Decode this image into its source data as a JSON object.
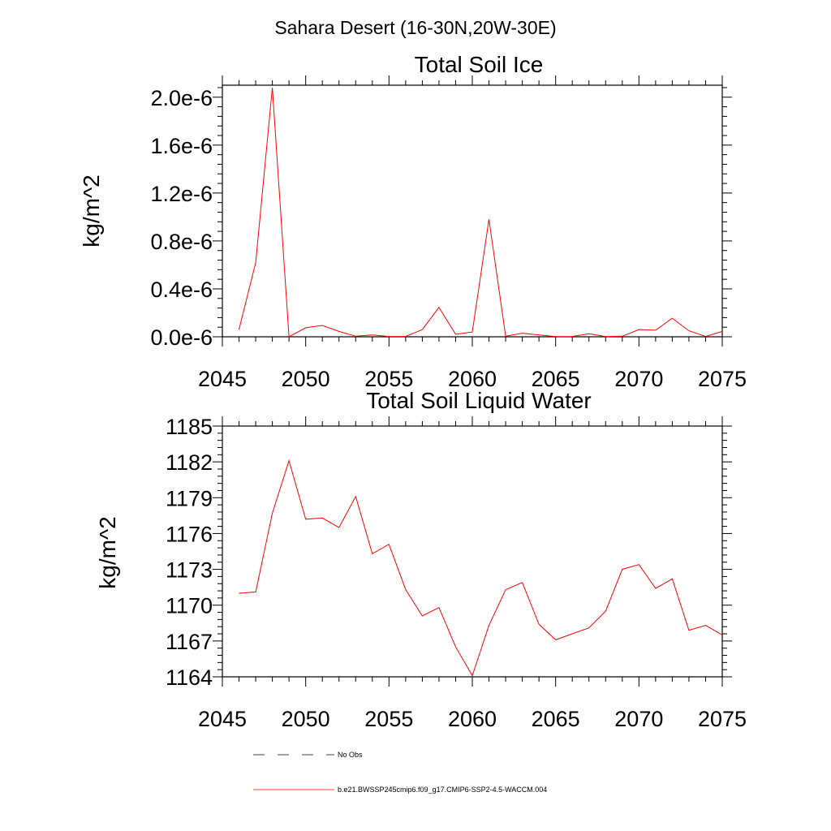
{
  "figure_title": "Sahara Desert (16-30N,20W-30E)",
  "legend": {
    "entries": [
      {
        "label": "No Obs",
        "color": "#00004a",
        "style": "dashed"
      },
      {
        "label": "b.e21.BWSSP245cmip6.f09_g17.CMIP6-SSP2-4.5-WACCM.004",
        "color": "#ff0000",
        "style": "solid"
      }
    ]
  },
  "chart_data": [
    {
      "type": "line",
      "title": "Total Soil Ice",
      "xlabel": "",
      "ylabel": "kg/m^2",
      "xlim": [
        2045,
        2075
      ],
      "ylim": [
        0.0,
        2.1e-06
      ],
      "grid": false,
      "x_ticks": [
        2045,
        2050,
        2055,
        2060,
        2065,
        2070,
        2075
      ],
      "x_tick_labels": [
        "2045",
        "2050",
        "2055",
        "2060",
        "2065",
        "2070",
        "2075"
      ],
      "y_ticks": [
        0.0,
        4e-07,
        8e-07,
        1.2e-06,
        1.6e-06,
        2e-06
      ],
      "y_tick_labels": [
        "0.0e-6",
        "0.4e-6",
        "0.8e-6",
        "1.2e-6",
        "1.6e-6",
        "2.0e-6"
      ],
      "series": [
        {
          "name": "b.e21.BWSSP245cmip6.f09_g17.CMIP6-SSP2-4.5-WACCM.004",
          "color": "#ff0000",
          "x": [
            2046,
            2047,
            2048,
            2049,
            2050,
            2051,
            2052,
            2053,
            2054,
            2055,
            2056,
            2057,
            2058,
            2059,
            2060,
            2061,
            2062,
            2063,
            2064,
            2065,
            2066,
            2067,
            2068,
            2069,
            2070,
            2071,
            2072,
            2073,
            2074,
            2075
          ],
          "values": [
            6e-08,
            6.2e-07,
            2.08e-06,
            0.0,
            7.5e-08,
            9.5e-08,
            4.5e-08,
            5e-09,
            1.5e-08,
            3e-09,
            3e-09,
            6e-08,
            2.45e-07,
            2e-08,
            4e-08,
            9.8e-07,
            5e-09,
            3e-08,
            1.5e-08,
            2e-09,
            3e-09,
            2.5e-08,
            2e-09,
            5e-09,
            6e-08,
            5.5e-08,
            1.55e-07,
            5e-08,
            3e-09,
            4.5e-08
          ]
        }
      ]
    },
    {
      "type": "line",
      "title": "Total Soil Liquid Water",
      "xlabel": "",
      "ylabel": "kg/m^2",
      "xlim": [
        2045,
        2075
      ],
      "ylim": [
        1164,
        1185
      ],
      "grid": false,
      "x_ticks": [
        2045,
        2050,
        2055,
        2060,
        2065,
        2070,
        2075
      ],
      "x_tick_labels": [
        "2045",
        "2050",
        "2055",
        "2060",
        "2065",
        "2070",
        "2075"
      ],
      "y_ticks": [
        1164,
        1167,
        1170,
        1173,
        1176,
        1179,
        1182,
        1185
      ],
      "y_tick_labels": [
        "1164",
        "1167",
        "1170",
        "1173",
        "1176",
        "1179",
        "1182",
        "1185"
      ],
      "series": [
        {
          "name": "b.e21.BWSSP245cmip6.f09_g17.CMIP6-SSP2-4.5-WACCM.004",
          "color": "#ff0000",
          "x": [
            2046,
            2047,
            2048,
            2049,
            2050,
            2051,
            2052,
            2053,
            2054,
            2055,
            2056,
            2057,
            2058,
            2059,
            2060,
            2061,
            2062,
            2063,
            2064,
            2065,
            2066,
            2067,
            2068,
            2069,
            2070,
            2071,
            2072,
            2073,
            2074,
            2075
          ],
          "values": [
            1171.0,
            1171.1,
            1177.7,
            1182.1,
            1177.2,
            1177.3,
            1176.5,
            1179.1,
            1174.3,
            1175.1,
            1171.3,
            1169.1,
            1169.8,
            1166.5,
            1164.1,
            1168.3,
            1171.3,
            1171.9,
            1168.4,
            1167.1,
            1167.6,
            1168.1,
            1169.5,
            1173.0,
            1173.4,
            1171.4,
            1172.2,
            1167.9,
            1168.3,
            1167.5
          ]
        }
      ]
    }
  ]
}
